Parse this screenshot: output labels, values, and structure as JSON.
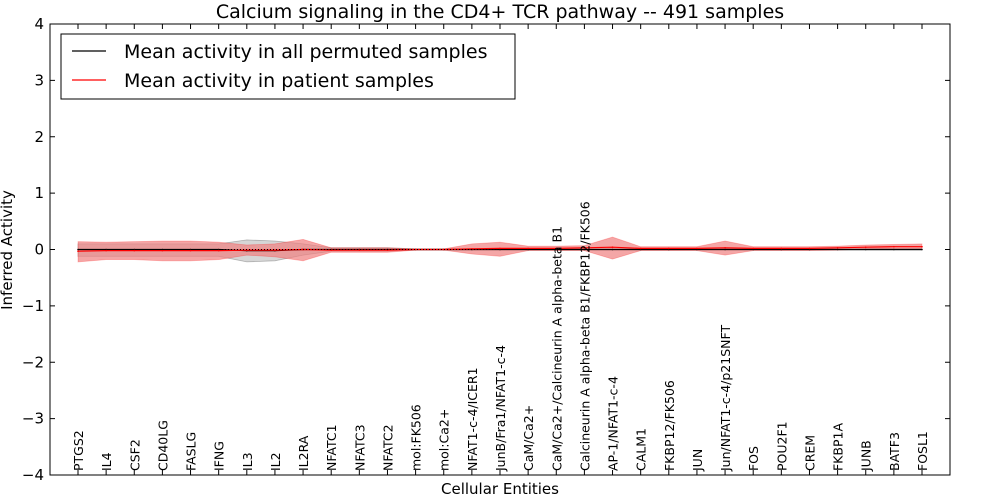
{
  "chart_data": {
    "type": "line",
    "title": "Calcium signaling in the CD4+ TCR pathway -- 491 samples",
    "xlabel": "Cellular Entities",
    "ylabel": "Inferred Activity",
    "ylim": [
      -4,
      4
    ],
    "yticks": [
      -4,
      -3,
      -2,
      -1,
      0,
      1,
      2,
      3,
      4
    ],
    "ytick_labels": [
      "−4",
      "−3",
      "−2",
      "−1",
      "0",
      "1",
      "2",
      "3",
      "4"
    ],
    "grid": false,
    "legend_position": "top-left",
    "categories": [
      "PTGS2",
      "IL4",
      "CSF2",
      "CD40LG",
      "FASLG",
      "IFNG",
      "IL3",
      "IL2",
      "IL2RA",
      "NFATC1",
      "NFATC3",
      "NFATC2",
      "mol:FK506",
      "mol:Ca2+",
      "NFAT1-c-4/ICER1",
      "JunB/Fra1/NFAT1-c-4",
      "CaM/Ca2+",
      "CaM/Ca2+/Calcineurin A alpha-beta B1",
      "Calcineurin A alpha-beta B1/FKBP12/FK506",
      "AP-1/NFAT1-c-4",
      "CALM1",
      "FKBP12/FK506",
      "JUN",
      "Jun/NFAT1-c-4/p21SNFT",
      "FOS",
      "POU2F1",
      "CREM",
      "FKBP1A",
      "JUNB",
      "BATF3",
      "FOSL1"
    ],
    "series": [
      {
        "name": "Mean activity in all permuted samples",
        "color": "#000000",
        "band_color": "#c8c8c8",
        "values": [
          0.0,
          0.0,
          0.0,
          0.0,
          0.0,
          0.0,
          -0.02,
          -0.02,
          0.0,
          0.0,
          0.0,
          0.0,
          0.0,
          0.0,
          0.0,
          0.0,
          0.0,
          0.0,
          0.0,
          0.0,
          0.0,
          0.0,
          0.0,
          0.0,
          0.0,
          0.0,
          0.0,
          0.0,
          0.0,
          0.0,
          0.0
        ],
        "lower": [
          -0.12,
          -0.12,
          -0.12,
          -0.12,
          -0.12,
          -0.12,
          -0.22,
          -0.2,
          -0.1,
          -0.03,
          -0.03,
          -0.03,
          -0.01,
          -0.01,
          -0.01,
          -0.01,
          -0.01,
          -0.01,
          -0.01,
          -0.01,
          -0.01,
          -0.01,
          -0.01,
          -0.01,
          -0.01,
          -0.01,
          -0.01,
          -0.01,
          -0.01,
          -0.01,
          -0.01
        ],
        "upper": [
          0.1,
          0.1,
          0.1,
          0.1,
          0.1,
          0.1,
          0.17,
          0.15,
          0.1,
          0.03,
          0.03,
          0.03,
          0.01,
          0.01,
          0.01,
          0.01,
          0.01,
          0.01,
          0.01,
          0.01,
          0.01,
          0.01,
          0.01,
          0.01,
          0.01,
          0.01,
          0.01,
          0.01,
          0.01,
          0.01,
          0.01
        ]
      },
      {
        "name": "Mean activity in patient samples",
        "color": "#ff0000",
        "band_color": "#f08080",
        "values": [
          -0.03,
          -0.02,
          -0.02,
          -0.02,
          -0.02,
          -0.02,
          -0.01,
          -0.01,
          0.0,
          -0.01,
          -0.01,
          -0.01,
          0.0,
          0.0,
          0.01,
          0.02,
          0.02,
          0.02,
          0.03,
          0.04,
          0.02,
          0.02,
          0.02,
          0.03,
          0.02,
          0.02,
          0.02,
          0.03,
          0.04,
          0.05,
          0.05
        ],
        "lower": [
          -0.22,
          -0.18,
          -0.18,
          -0.2,
          -0.2,
          -0.18,
          -0.1,
          -0.13,
          -0.2,
          -0.05,
          -0.05,
          -0.05,
          -0.01,
          -0.01,
          -0.08,
          -0.12,
          -0.02,
          -0.02,
          -0.02,
          -0.17,
          -0.02,
          -0.02,
          -0.02,
          -0.1,
          -0.02,
          -0.02,
          -0.02,
          -0.01,
          0.01,
          0.02,
          0.02
        ],
        "upper": [
          0.14,
          0.13,
          0.14,
          0.15,
          0.15,
          0.13,
          0.08,
          0.1,
          0.18,
          0.03,
          0.03,
          0.03,
          0.01,
          0.01,
          0.1,
          0.13,
          0.06,
          0.06,
          0.07,
          0.22,
          0.05,
          0.05,
          0.05,
          0.15,
          0.05,
          0.05,
          0.05,
          0.06,
          0.08,
          0.09,
          0.1
        ]
      }
    ]
  }
}
